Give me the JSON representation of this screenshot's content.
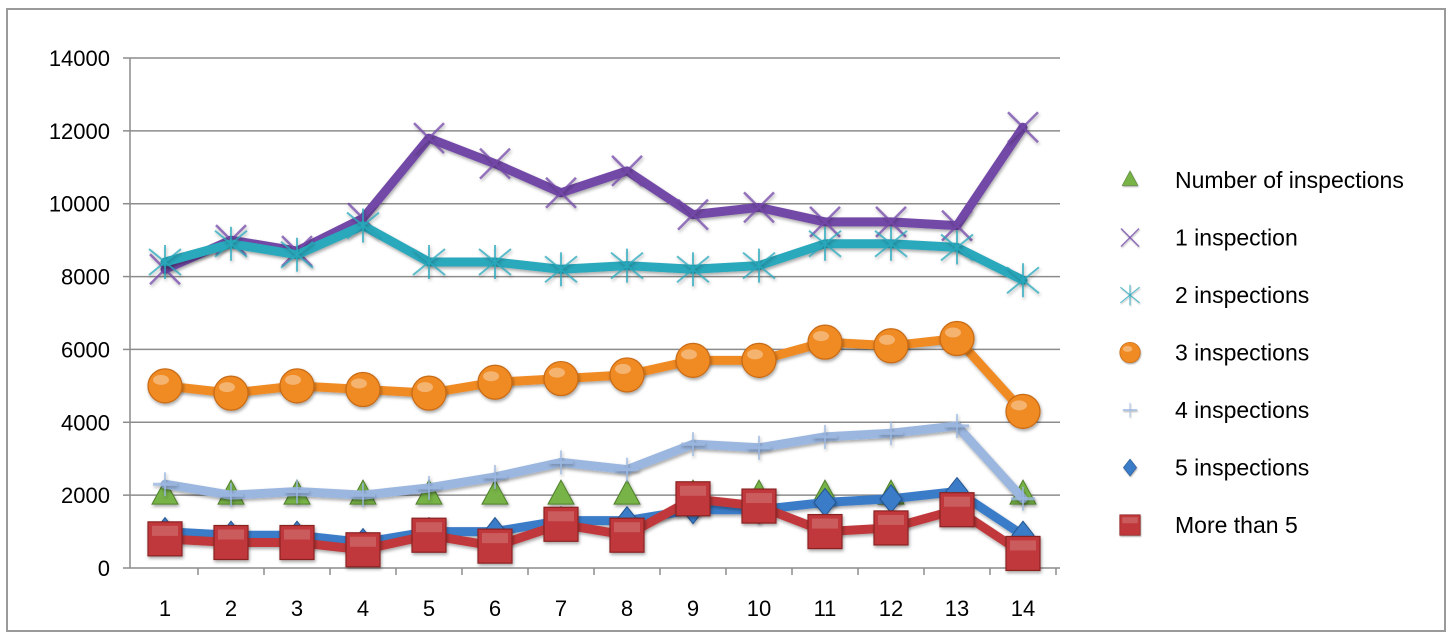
{
  "chart_data": {
    "type": "line",
    "title": "",
    "xlabel": "",
    "ylabel": "",
    "x": [
      1,
      2,
      3,
      4,
      5,
      6,
      7,
      8,
      9,
      10,
      11,
      12,
      13,
      14
    ],
    "ylim": [
      0,
      14000
    ],
    "yticks": [
      0,
      2000,
      4000,
      6000,
      8000,
      10000,
      12000,
      14000
    ],
    "grid": true,
    "legend_position": "right",
    "series": [
      {
        "name": "Number of inspections",
        "color": "#77b347",
        "marker": "triangle",
        "values": [
          2000,
          2000,
          2000,
          2000,
          2000,
          2000,
          2000,
          2000,
          2000,
          2000,
          2000,
          2000,
          2000,
          2000
        ]
      },
      {
        "name": "1 inspection",
        "color": "#7348a8",
        "marker": "x",
        "values": [
          8200,
          9000,
          8700,
          9600,
          11800,
          11100,
          10300,
          10900,
          9700,
          9900,
          9500,
          9500,
          9400,
          12100
        ]
      },
      {
        "name": "2 inspections",
        "color": "#2aa8bc",
        "marker": "asterisk",
        "values": [
          8400,
          8900,
          8600,
          9400,
          8400,
          8400,
          8200,
          8300,
          8200,
          8300,
          8900,
          8900,
          8800,
          7900
        ]
      },
      {
        "name": "3 inspections",
        "color": "#f08a23",
        "marker": "circle",
        "values": [
          5000,
          4800,
          5000,
          4900,
          4800,
          5100,
          5200,
          5300,
          5700,
          5700,
          6200,
          6100,
          6300,
          4300
        ]
      },
      {
        "name": "4 inspections",
        "color": "#9bb7e0",
        "marker": "dash",
        "values": [
          2300,
          2000,
          2100,
          2000,
          2200,
          2500,
          2900,
          2700,
          3400,
          3300,
          3600,
          3700,
          3900,
          1900
        ]
      },
      {
        "name": "5 inspections",
        "color": "#3b7bc8",
        "marker": "diamond",
        "values": [
          1000,
          900,
          900,
          700,
          1000,
          1000,
          1300,
          1300,
          1600,
          1600,
          1800,
          1900,
          2100,
          900
        ]
      },
      {
        "name": "More  than 5",
        "color": "#c0393a",
        "marker": "square",
        "values": [
          800,
          700,
          700,
          500,
          900,
          600,
          1200,
          900,
          1900,
          1700,
          1000,
          1100,
          1600,
          400
        ]
      }
    ]
  }
}
